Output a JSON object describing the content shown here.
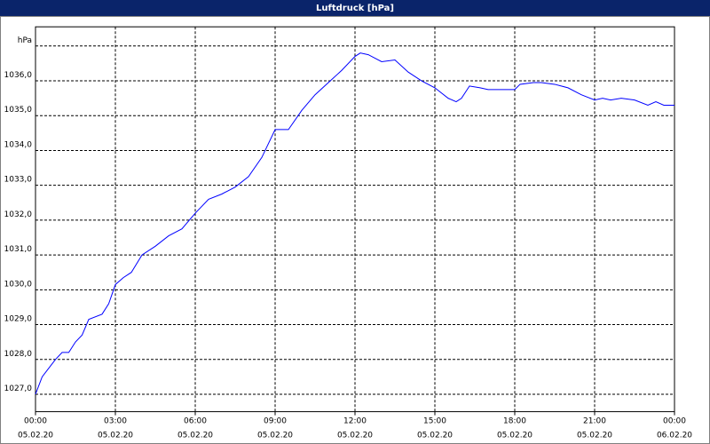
{
  "chart_data": {
    "type": "line",
    "title": "Luftdruck [hPa]",
    "x": [
      0,
      0.25,
      0.5,
      0.75,
      1,
      1.25,
      1.5,
      1.75,
      2,
      2.5,
      2.75,
      3,
      3.3,
      3.6,
      4,
      4.5,
      5,
      5.5,
      6,
      6.5,
      7,
      7.5,
      8,
      8.5,
      9,
      9.5,
      10,
      10.5,
      11,
      11.5,
      12,
      12.2,
      12.5,
      13,
      13.5,
      14,
      14.5,
      15,
      15.5,
      15.8,
      16,
      16.3,
      16.7,
      17,
      17.5,
      18,
      18.2,
      18.7,
      19,
      19.5,
      20,
      20.5,
      21,
      21.3,
      21.6,
      22,
      22.5,
      23,
      23.3,
      23.6,
      24
    ],
    "series": [
      {
        "name": "Luftdruck",
        "color": "#0000ff",
        "values": [
          1027.0,
          1027.5,
          1027.75,
          1028.0,
          1028.2,
          1028.2,
          1028.5,
          1028.7,
          1029.15,
          1029.3,
          1029.6,
          1030.15,
          1030.35,
          1030.5,
          1031.0,
          1031.25,
          1031.55,
          1031.75,
          1032.2,
          1032.6,
          1032.75,
          1032.95,
          1033.25,
          1033.8,
          1034.6,
          1034.6,
          1035.15,
          1035.6,
          1035.95,
          1036.3,
          1036.7,
          1036.8,
          1036.75,
          1036.55,
          1036.6,
          1036.25,
          1036.0,
          1035.8,
          1035.5,
          1035.4,
          1035.5,
          1035.85,
          1035.8,
          1035.75,
          1035.75,
          1035.75,
          1035.9,
          1035.95,
          1035.95,
          1035.9,
          1035.8,
          1035.6,
          1035.45,
          1035.5,
          1035.45,
          1035.5,
          1035.45,
          1035.3,
          1035.4,
          1035.3,
          1035.3
        ]
      }
    ],
    "xlim": [
      0,
      24
    ],
    "xticks": [
      {
        "value": 0,
        "label": [
          "00:00",
          "05.02.20"
        ]
      },
      {
        "value": 3,
        "label": [
          "03:00",
          "05.02.20"
        ]
      },
      {
        "value": 6,
        "label": [
          "06:00",
          "05.02.20"
        ]
      },
      {
        "value": 9,
        "label": [
          "09:00",
          "05.02.20"
        ]
      },
      {
        "value": 12,
        "label": [
          "12:00",
          "05.02.20"
        ]
      },
      {
        "value": 15,
        "label": [
          "15:00",
          "05.02.20"
        ]
      },
      {
        "value": 18,
        "label": [
          "18:00",
          "05.02.20"
        ]
      },
      {
        "value": 21,
        "label": [
          "21:00",
          "05.02.20"
        ]
      },
      {
        "value": 24,
        "label": [
          "00:00",
          "06.02.20"
        ]
      }
    ],
    "ylim": [
      1026.5,
      1037.5
    ],
    "yticks": [
      {
        "value": 1027,
        "label": "1027,0"
      },
      {
        "value": 1028,
        "label": "1028,0"
      },
      {
        "value": 1029,
        "label": "1029,0"
      },
      {
        "value": 1030,
        "label": "1030,0"
      },
      {
        "value": 1031,
        "label": "1031,0"
      },
      {
        "value": 1032,
        "label": "1032,0"
      },
      {
        "value": 1033,
        "label": "1033,0"
      },
      {
        "value": 1034,
        "label": "1034,0"
      },
      {
        "value": 1035,
        "label": "1035,0"
      },
      {
        "value": 1036,
        "label": "1036,0"
      },
      {
        "value": 1037,
        "label": "hPa"
      }
    ],
    "grid": true
  }
}
